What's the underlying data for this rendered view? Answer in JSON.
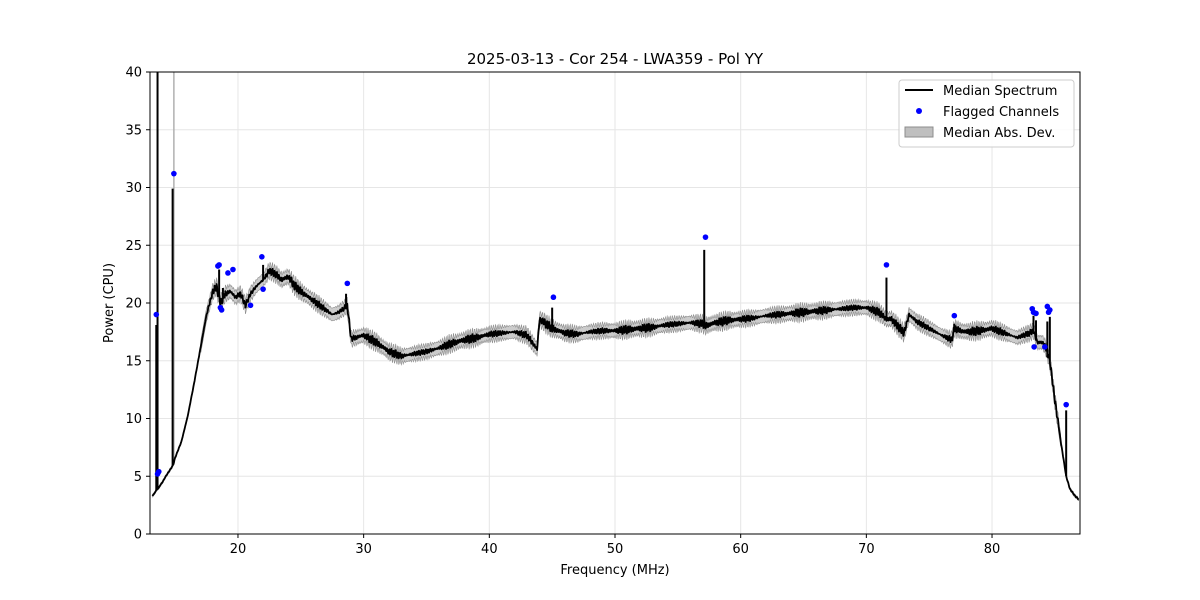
{
  "chart_data": {
    "type": "line",
    "title": "2025-03-13 - Cor 254 - LWA359 - Pol YY",
    "xlabel": "Frequency (MHz)",
    "ylabel": "Power (CPU)",
    "xlim": [
      13,
      87
    ],
    "ylim": [
      0,
      40
    ],
    "xticks": [
      20,
      30,
      40,
      50,
      60,
      70,
      80
    ],
    "yticks": [
      0,
      5,
      10,
      15,
      20,
      25,
      30,
      35,
      40
    ],
    "grid": true,
    "legend_position": "top-right",
    "legend": [
      "Median Spectrum",
      "Flagged Channels",
      "Median Abs. Dev."
    ],
    "colors": {
      "line": "#000000",
      "flagged": "#0000ff",
      "band": "#bfbfbf",
      "band_edge": "#8c8c8c"
    },
    "series": [
      {
        "name": "Median Spectrum",
        "kind": "line",
        "x": [
          13.2,
          13.4,
          13.5,
          13.6,
          13.7,
          13.8,
          14.0,
          14.2,
          14.5,
          14.8,
          14.9,
          15.0,
          15.5,
          16.0,
          16.5,
          17.0,
          17.5,
          18.0,
          18.3,
          18.6,
          19.0,
          19.4,
          19.8,
          20.2,
          20.6,
          21.0,
          21.5,
          22.0,
          22.5,
          23.0,
          23.5,
          24.0,
          24.5,
          25.0,
          25.5,
          26.0,
          26.5,
          27.0,
          27.5,
          28.0,
          28.5,
          28.7,
          29.0,
          30.0,
          31.0,
          32.0,
          33.0,
          34.0,
          35.0,
          36.0,
          37.0,
          38.0,
          39.0,
          40.0,
          41.0,
          42.0,
          43.0,
          43.8,
          44.0,
          45.0,
          46.0,
          47.0,
          48.0,
          49.0,
          50.0,
          51.0,
          52.0,
          53.0,
          54.0,
          55.0,
          56.0,
          57.0,
          57.2,
          57.4,
          58.0,
          59.0,
          60.0,
          61.0,
          62.0,
          63.0,
          64.0,
          65.0,
          66.0,
          67.0,
          68.0,
          69.0,
          70.0,
          71.0,
          71.6,
          72.0,
          73.0,
          73.4,
          74.0,
          75.0,
          76.0,
          76.8,
          77.0,
          77.5,
          78.0,
          79.0,
          80.0,
          81.0,
          82.0,
          83.0,
          83.3,
          83.6,
          84.0,
          84.3,
          84.6,
          85.0,
          85.5,
          85.9,
          86.2,
          86.6,
          86.9
        ],
        "y": [
          3.3,
          3.6,
          3.8,
          3.9,
          4.0,
          4.2,
          4.5,
          4.9,
          5.4,
          5.9,
          6.2,
          6.6,
          8.0,
          10.2,
          13.0,
          16.0,
          19.0,
          21.0,
          21.4,
          20.0,
          20.8,
          21.0,
          20.5,
          20.8,
          19.8,
          20.8,
          21.5,
          22.0,
          22.8,
          22.5,
          22.0,
          22.3,
          21.5,
          21.0,
          20.6,
          20.2,
          19.8,
          19.4,
          19.0,
          19.2,
          19.6,
          19.8,
          16.9,
          17.2,
          16.6,
          15.8,
          15.4,
          15.6,
          15.8,
          16.1,
          16.5,
          16.8,
          17.0,
          17.3,
          17.4,
          17.5,
          17.2,
          16.0,
          18.6,
          17.8,
          17.4,
          17.3,
          17.5,
          17.6,
          17.6,
          17.7,
          17.8,
          17.9,
          18.1,
          18.2,
          18.3,
          18.2,
          18.0,
          18.1,
          18.3,
          18.5,
          18.6,
          18.7,
          18.9,
          19.0,
          19.1,
          19.2,
          19.3,
          19.4,
          19.5,
          19.6,
          19.6,
          19.2,
          18.6,
          18.6,
          17.4,
          19.0,
          18.4,
          17.8,
          17.2,
          16.8,
          17.8,
          17.6,
          17.5,
          17.6,
          17.8,
          17.4,
          17.0,
          17.4,
          17.6,
          16.6,
          16.6,
          16.1,
          15.0,
          11.6,
          7.8,
          5.0,
          3.9,
          3.3,
          3.0
        ]
      },
      {
        "name": "Median Spectrum spikes",
        "kind": "spikes",
        "x": [
          13.5,
          13.6,
          14.8,
          18.5,
          18.8,
          22.0,
          28.6,
          45.0,
          57.1,
          71.6,
          77.0,
          83.3,
          83.5,
          84.4,
          84.6,
          85.9
        ],
        "y": [
          18.1,
          40.0,
          29.9,
          22.9,
          21.3,
          23.3,
          20.8,
          19.6,
          24.6,
          22.2,
          18.2,
          18.9,
          18.5,
          18.4,
          18.8,
          10.7
        ]
      },
      {
        "name": "Flagged Channels",
        "kind": "scatter",
        "x": [
          13.5,
          13.6,
          13.7,
          14.9,
          18.4,
          18.5,
          18.6,
          18.7,
          19.2,
          19.6,
          21.0,
          21.9,
          22.0,
          28.7,
          45.1,
          57.2,
          71.6,
          77.0,
          83.2,
          83.3,
          83.35,
          83.5,
          84.2,
          84.4,
          84.5,
          84.6,
          85.9
        ],
        "y": [
          19.0,
          5.2,
          5.4,
          31.2,
          23.2,
          23.3,
          19.6,
          19.4,
          22.6,
          22.9,
          19.8,
          24.0,
          21.2,
          21.7,
          20.5,
          25.7,
          23.3,
          18.9,
          19.5,
          19.2,
          16.2,
          19.1,
          16.2,
          19.7,
          19.2,
          19.4,
          11.2
        ]
      },
      {
        "name": "Median Abs. Dev.",
        "kind": "band",
        "half_width": 0.55
      }
    ]
  }
}
